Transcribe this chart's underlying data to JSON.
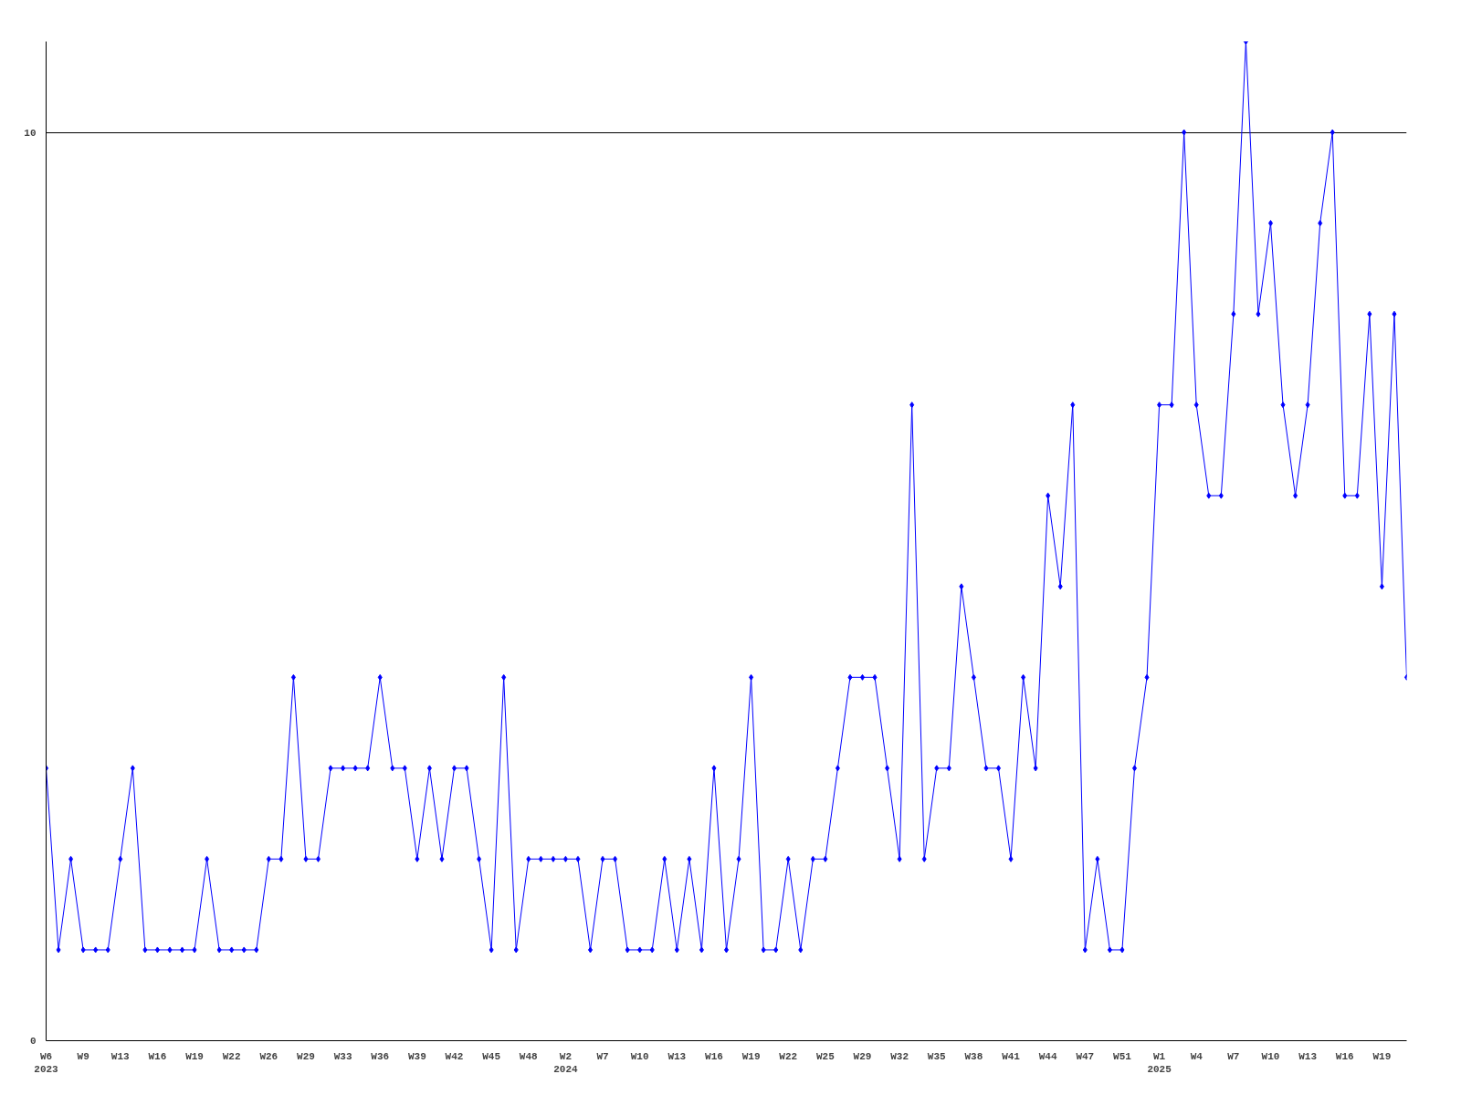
{
  "chart_data": {
    "type": "line",
    "categories": [
      "W6\n2023",
      null,
      null,
      "W9",
      null,
      null,
      "W13",
      null,
      null,
      "W16",
      null,
      null,
      "W19",
      null,
      null,
      "W22",
      null,
      null,
      "W26",
      null,
      null,
      "W29",
      null,
      null,
      "W33",
      null,
      null,
      "W36",
      null,
      null,
      "W39",
      null,
      null,
      "W42",
      null,
      null,
      "W45",
      null,
      null,
      "W48",
      null,
      null,
      "W2\n2024",
      null,
      null,
      "W7",
      null,
      null,
      "W10",
      null,
      null,
      "W13",
      null,
      null,
      "W16",
      null,
      null,
      "W19",
      null,
      null,
      "W22",
      null,
      null,
      "W25",
      null,
      null,
      "W29",
      null,
      null,
      "W32",
      null,
      null,
      "W35",
      null,
      null,
      "W38",
      null,
      null,
      "W41",
      null,
      null,
      "W44",
      null,
      null,
      "W47",
      null,
      null,
      "W51",
      null,
      null,
      "W1\n2025",
      null,
      null,
      "W4",
      null,
      null,
      "W7",
      null,
      null,
      "W10",
      null,
      null,
      "W13",
      null,
      null,
      "W16",
      null,
      null,
      "W19",
      null,
      null
    ],
    "series": [
      {
        "color": "#0000ff",
        "values": [
          3,
          1,
          2,
          1,
          1,
          1,
          2,
          3,
          1,
          1,
          1,
          1,
          1,
          2,
          1,
          1,
          1,
          1,
          2,
          2,
          4,
          2,
          2,
          3,
          3,
          3,
          3,
          4,
          3,
          3,
          2,
          3,
          2,
          3,
          3,
          2,
          1,
          4,
          1,
          2,
          2,
          2,
          2,
          2,
          1,
          2,
          2,
          1,
          1,
          1,
          2,
          1,
          2,
          1,
          3,
          1,
          2,
          4,
          1,
          1,
          2,
          1,
          2,
          2,
          3,
          4,
          4,
          4,
          3,
          2,
          7,
          2,
          3,
          3,
          5,
          4,
          3,
          3,
          2,
          4,
          3,
          6,
          5,
          7,
          1,
          2,
          1,
          1,
          3,
          4,
          7,
          7,
          10,
          7,
          6,
          6,
          8,
          11,
          8,
          9,
          7,
          6,
          7,
          9,
          10,
          6,
          6,
          8,
          5,
          8,
          4
        ]
      }
    ],
    "ylim": [
      0,
      11
    ],
    "yticks": [
      0,
      10
    ],
    "grid": "y",
    "marker": "diamond",
    "line_style": "solid"
  }
}
